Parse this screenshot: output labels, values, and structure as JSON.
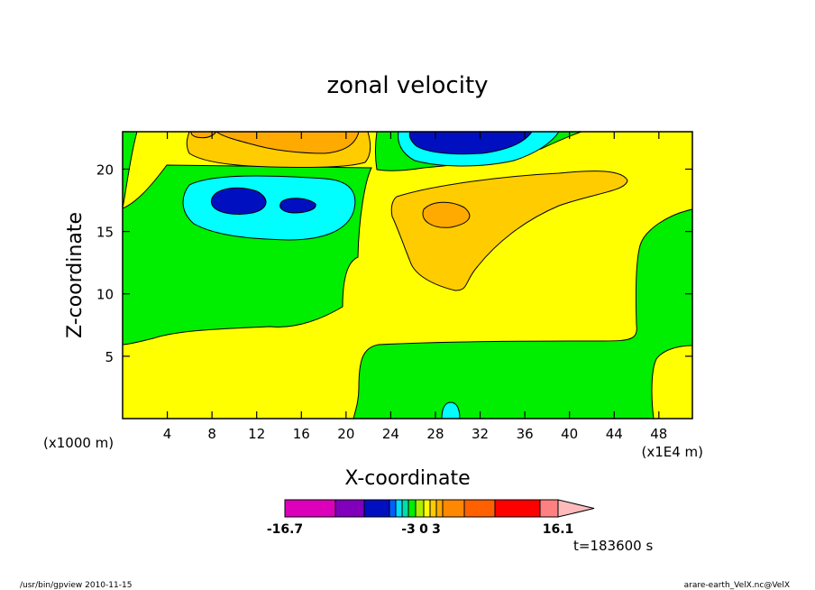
{
  "chart_data": {
    "type": "heatmap",
    "title": "zonal velocity",
    "xlabel": "X-coordinate",
    "ylabel": "Z-coordinate",
    "x_unit_left": "(x1000 m)",
    "x_unit_right": "(x1E4 m)",
    "xlim": [
      0,
      51
    ],
    "ylim": [
      0,
      23
    ],
    "x_ticks": [
      4,
      8,
      12,
      16,
      20,
      24,
      28,
      32,
      36,
      40,
      44,
      48
    ],
    "y_ticks": [
      5,
      10,
      15,
      20
    ],
    "time_label": "t=183600 s",
    "colorbar": {
      "bins": [
        {
          "lo": -16.7,
          "hi": -12,
          "color": "#dd00bb"
        },
        {
          "lo": -12,
          "hi": -9,
          "color": "#8000bb"
        },
        {
          "lo": -9,
          "hi": -6,
          "color": "#0010c0"
        },
        {
          "lo": -6,
          "hi": -5,
          "color": "#0060ff"
        },
        {
          "lo": -5,
          "hi": -4,
          "color": "#00ddff"
        },
        {
          "lo": -4,
          "hi": -3,
          "color": "#00ddaa"
        },
        {
          "lo": -3,
          "hi": -1.5,
          "color": "#00ee00"
        },
        {
          "lo": -1.5,
          "hi": 0,
          "color": "#aaee00"
        },
        {
          "lo": 0,
          "hi": 1.5,
          "color": "#ffff00"
        },
        {
          "lo": 1.5,
          "hi": 3,
          "color": "#ffcc00"
        },
        {
          "lo": 3,
          "hi": 4.5,
          "color": "#ffaa00"
        },
        {
          "lo": 4.5,
          "hi": 6,
          "color": "#ff8800"
        },
        {
          "lo": 6,
          "hi": 9,
          "color": "#ff6000"
        },
        {
          "lo": 9,
          "hi": 12,
          "color": "#ff0000"
        },
        {
          "lo": 12,
          "hi": 16.1,
          "color": "#ff8080"
        },
        {
          "lo": 16.1,
          "hi": 20,
          "color": "#ffbbbb"
        }
      ],
      "tick_labels": [
        "-16.7",
        "-3",
        "0",
        "3",
        "16.1"
      ]
    },
    "footer_left": "/usr/bin/gpview   2010-11-15",
    "footer_right": "arare-earth_VelX.nc@VelX",
    "colors": {
      "yellow": "#ffff00",
      "green": "#00ee00",
      "cyan": "#00ffff",
      "blue": "#0010c0",
      "orange_light": "#ffcc00",
      "orange": "#ffaa00"
    }
  }
}
